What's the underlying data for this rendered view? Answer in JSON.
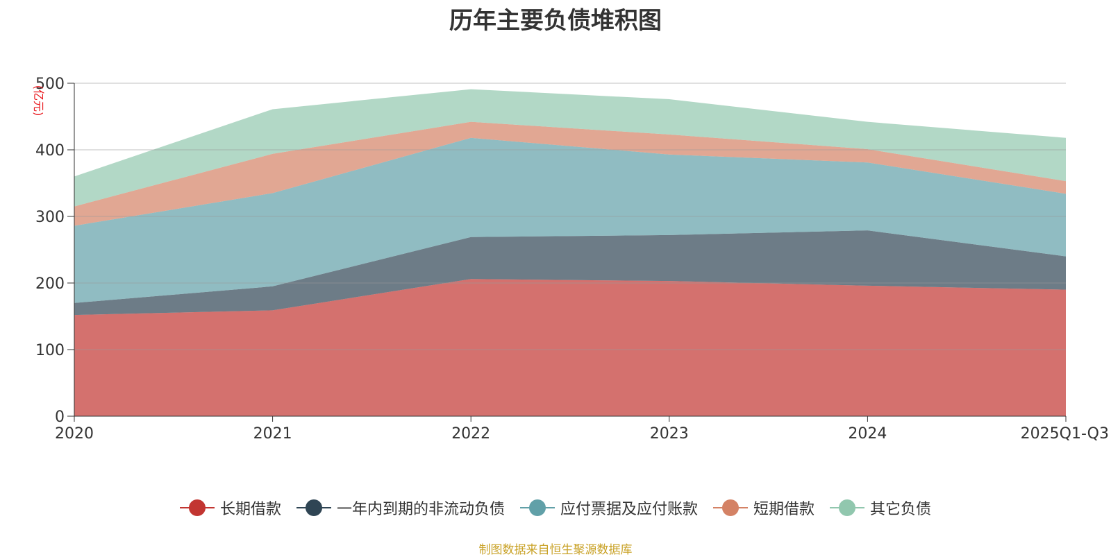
{
  "chart_data": {
    "type": "area",
    "stacked": true,
    "title": "历年主要负债堆积图",
    "unit_label": "(亿元)",
    "categories": [
      "2020",
      "2021",
      "2022",
      "2023",
      "2024",
      "2025Q1-Q3"
    ],
    "ylim": [
      0,
      500
    ],
    "yticks": [
      0,
      100,
      200,
      300,
      400,
      500
    ],
    "grid": true,
    "legend_position": "bottom",
    "series": [
      {
        "name": "长期借款",
        "color": "#c23531",
        "values": [
          152,
          159,
          206,
          203,
          196,
          190
        ]
      },
      {
        "name": "一年内到期的非流动负债",
        "color": "#2f4554",
        "values": [
          18,
          36,
          63,
          69,
          83,
          50
        ]
      },
      {
        "name": "应付票据及应付账款",
        "color": "#61a0a8",
        "values": [
          116,
          140,
          149,
          121,
          102,
          94
        ]
      },
      {
        "name": "短期借款",
        "color": "#d48265",
        "values": [
          29,
          59,
          24,
          30,
          20,
          19
        ]
      },
      {
        "name": "其它负债",
        "color": "#91c7ae",
        "values": [
          45,
          67,
          49,
          53,
          41,
          65
        ]
      }
    ]
  },
  "source_note": "制图数据来自恒生聚源数据库"
}
